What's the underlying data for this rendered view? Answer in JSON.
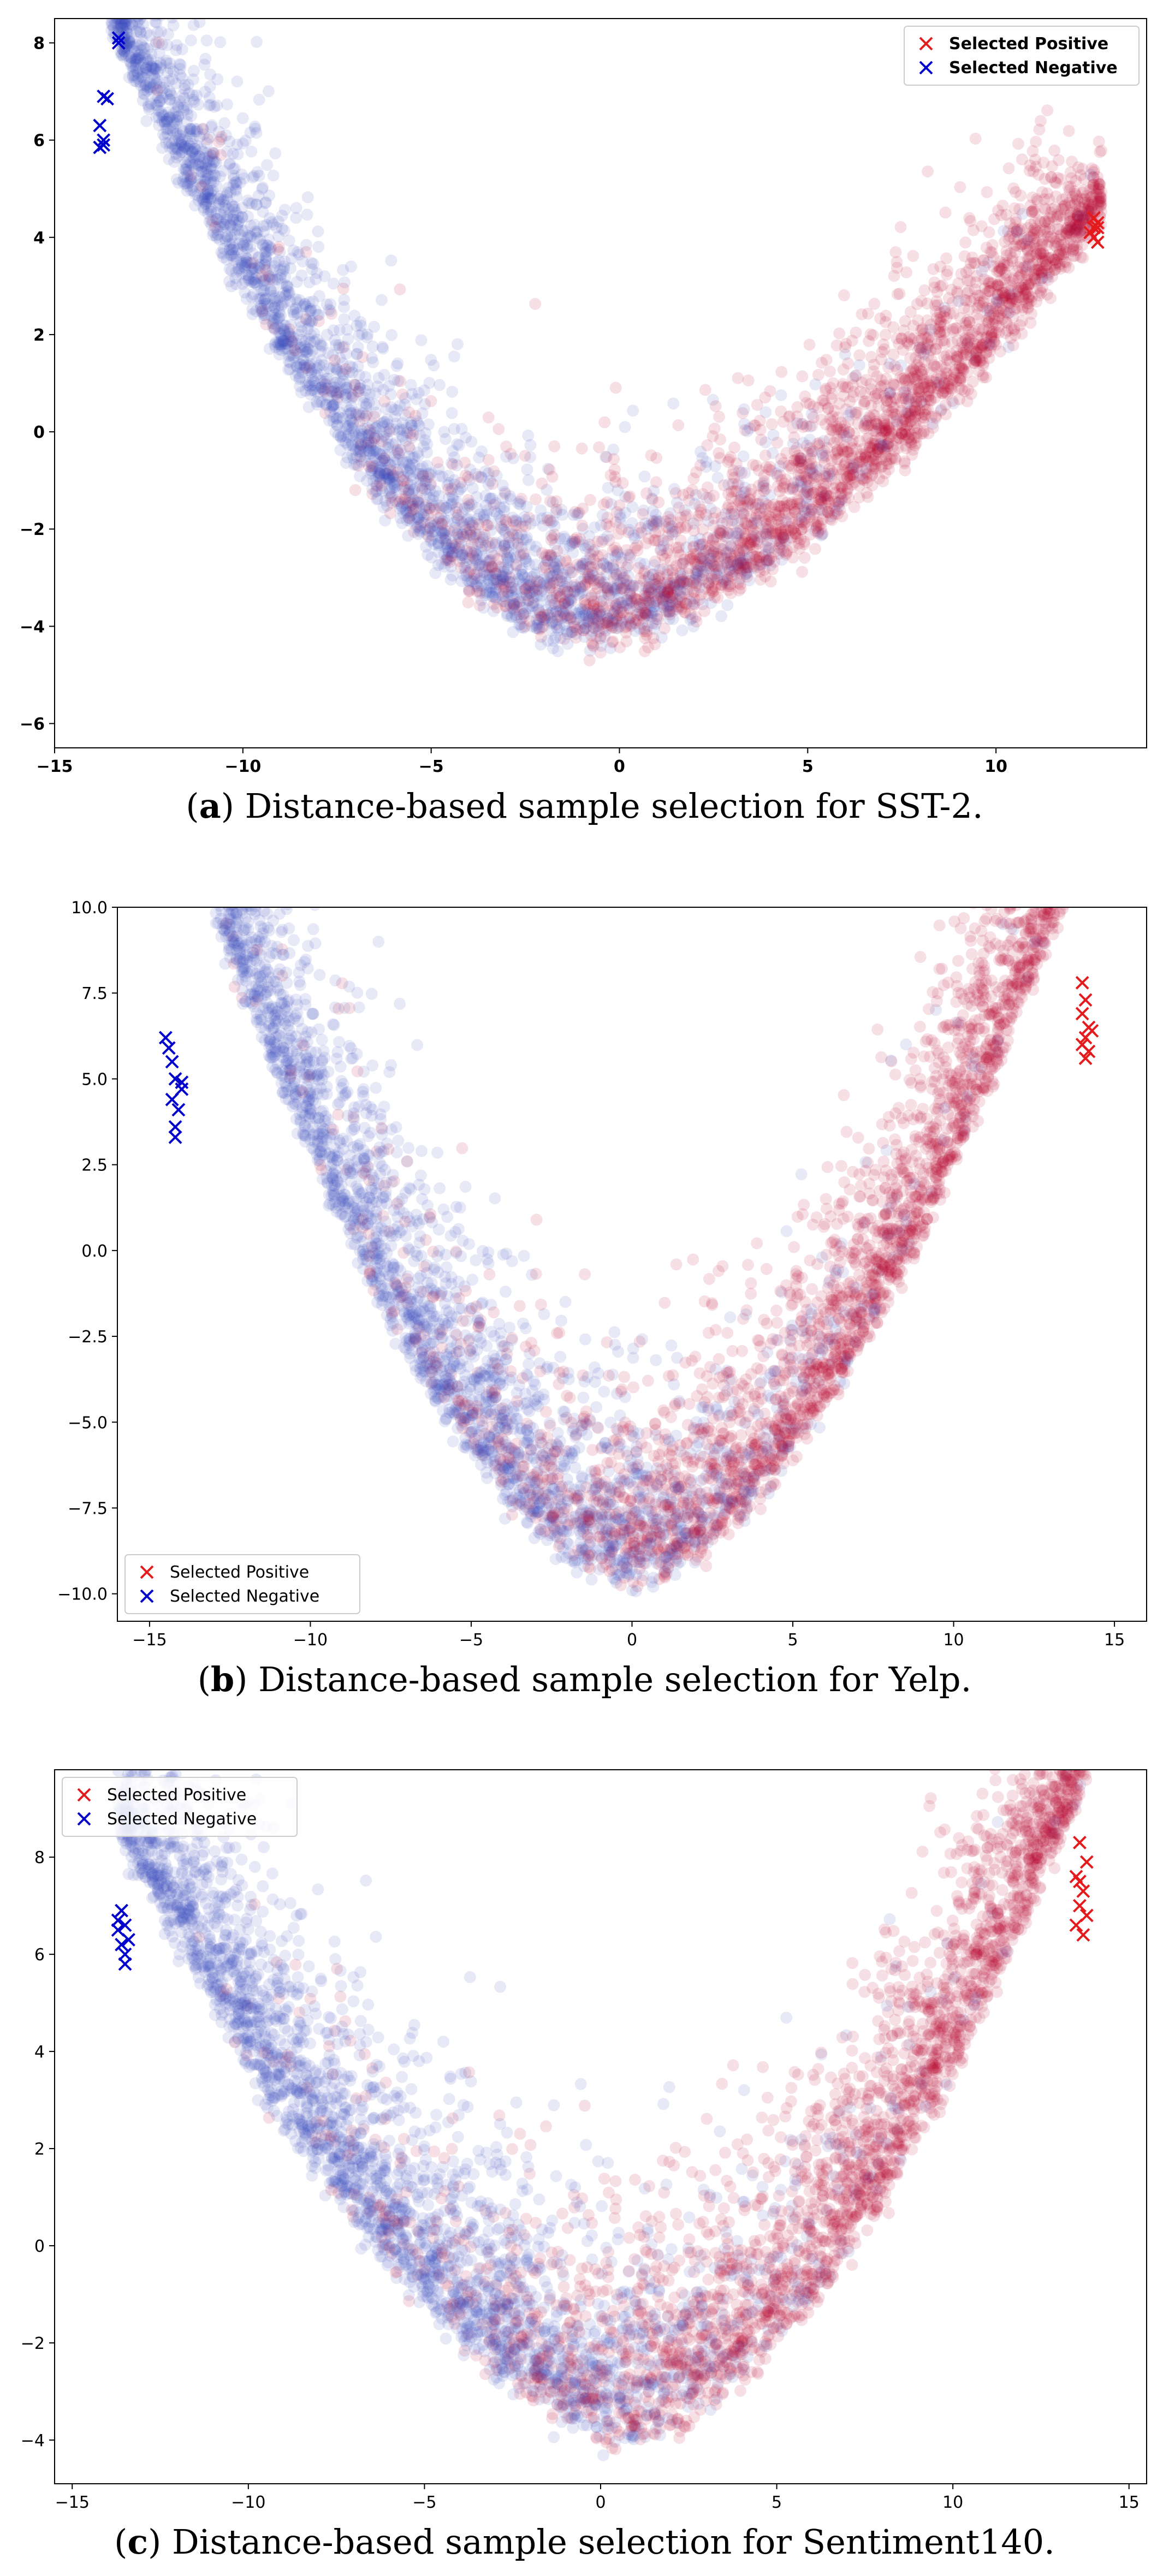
{
  "chart_data": [
    {
      "panel": "a",
      "type": "scatter",
      "title": "",
      "xlabel": "",
      "ylabel": "",
      "xlim": [
        -15,
        14
      ],
      "ylim": [
        -6.5,
        8.5
      ],
      "xticks": [
        -15,
        -10,
        -5,
        0,
        5,
        10
      ],
      "yticks": [
        -6,
        -4,
        -2,
        0,
        2,
        4,
        6,
        8
      ],
      "tick_bold": true,
      "grid": false,
      "legend": {
        "placement": "top-right",
        "bold": true,
        "entries": [
          "Selected Positive",
          "Selected Negative"
        ]
      },
      "colors": {
        "positive": "#b40426",
        "negative": "#3b4cc0",
        "selected_positive": "#e41a1c",
        "selected_negative": "#0000cc"
      },
      "cloud": {
        "shape": "u-arc",
        "x_range": [
          -13.5,
          12.8
        ],
        "min_at": [
          -1,
          -4.2
        ],
        "left_top": [
          -13.2,
          8.0
        ],
        "right_top": [
          12.6,
          4.4
        ],
        "spread": 1.6
      },
      "selected_positive": [
        [
          12.6,
          4.4
        ],
        [
          12.7,
          4.2
        ],
        [
          12.6,
          4.0
        ],
        [
          12.7,
          4.3
        ],
        [
          12.5,
          4.1
        ],
        [
          12.7,
          3.9
        ],
        [
          12.6,
          4.2
        ]
      ],
      "selected_negative": [
        [
          -13.3,
          8.1
        ],
        [
          -13.3,
          8.0
        ],
        [
          -13.7,
          6.9
        ],
        [
          -13.6,
          6.85
        ],
        [
          -13.8,
          6.3
        ],
        [
          -13.7,
          6.0
        ],
        [
          -13.8,
          5.85
        ],
        [
          -13.7,
          5.9
        ]
      ],
      "caption": {
        "label": "a",
        "text": "Distance-based sample selection for SST-2."
      }
    },
    {
      "panel": "b",
      "type": "scatter",
      "title": "",
      "xlabel": "",
      "ylabel": "",
      "xlim": [
        -16,
        16
      ],
      "ylim": [
        -10.8,
        10.0
      ],
      "xticks": [
        -15,
        -10,
        -5,
        0,
        5,
        10,
        15
      ],
      "yticks": [
        -10.0,
        -7.5,
        -5.0,
        -2.5,
        0.0,
        2.5,
        5.0,
        7.5,
        10.0
      ],
      "tick_bold": false,
      "grid": false,
      "legend": {
        "placement": "bottom-left",
        "bold": false,
        "entries": [
          "Selected Positive",
          "Selected Negative"
        ]
      },
      "colors": {
        "positive": "#b40426",
        "negative": "#3b4cc0",
        "selected_positive": "#e41a1c",
        "selected_negative": "#0000cc"
      },
      "cloud": {
        "shape": "u-arc",
        "x_range": [
          -14.8,
          14.2
        ],
        "min_at": [
          0,
          -9.6
        ],
        "left_top": [
          -12.8,
          9.4
        ],
        "right_top": [
          13.0,
          9.3
        ],
        "spread": 3.2
      },
      "selected_positive": [
        [
          14.0,
          7.8
        ],
        [
          14.1,
          7.3
        ],
        [
          14.0,
          6.9
        ],
        [
          14.2,
          6.5
        ],
        [
          14.1,
          6.2
        ],
        [
          14.0,
          6.0
        ],
        [
          14.2,
          5.8
        ],
        [
          14.1,
          5.6
        ],
        [
          14.3,
          6.4
        ]
      ],
      "selected_negative": [
        [
          -14.5,
          6.2
        ],
        [
          -14.4,
          5.9
        ],
        [
          -14.3,
          5.5
        ],
        [
          -14.2,
          5.0
        ],
        [
          -14.0,
          4.7
        ],
        [
          -14.3,
          4.4
        ],
        [
          -14.1,
          4.1
        ],
        [
          -14.2,
          3.6
        ],
        [
          -14.2,
          3.3
        ],
        [
          -14.0,
          4.9
        ]
      ],
      "caption": {
        "label": "b",
        "text": "Distance-based sample selection for Yelp."
      }
    },
    {
      "panel": "c",
      "type": "scatter",
      "title": "",
      "xlabel": "",
      "ylabel": "",
      "xlim": [
        -15.5,
        15.5
      ],
      "ylim": [
        -4.9,
        9.8
      ],
      "xticks": [
        -15,
        -10,
        -5,
        0,
        5,
        10,
        15
      ],
      "yticks": [
        -4,
        -2,
        0,
        2,
        4,
        6,
        8
      ],
      "tick_bold": false,
      "grid": false,
      "legend": {
        "placement": "top-left",
        "bold": false,
        "entries": [
          "Selected Positive",
          "Selected Negative"
        ]
      },
      "colors": {
        "positive": "#b40426",
        "negative": "#3b4cc0",
        "selected_positive": "#e41a1c",
        "selected_negative": "#0000cc"
      },
      "cloud": {
        "shape": "u-arc",
        "x_range": [
          -13.7,
          13.8
        ],
        "min_at": [
          1,
          -3.8
        ],
        "left_top": [
          -13.0,
          7.7
        ],
        "right_top": [
          13.2,
          8.8
        ],
        "spread": 2.4
      },
      "selected_positive": [
        [
          13.6,
          8.3
        ],
        [
          13.8,
          7.9
        ],
        [
          13.5,
          7.6
        ],
        [
          13.7,
          7.3
        ],
        [
          13.6,
          7.0
        ],
        [
          13.8,
          6.8
        ],
        [
          13.5,
          6.6
        ],
        [
          13.7,
          6.4
        ],
        [
          13.6,
          7.5
        ]
      ],
      "selected_negative": [
        [
          -13.6,
          6.9
        ],
        [
          -13.5,
          6.6
        ],
        [
          -13.7,
          6.5
        ],
        [
          -13.4,
          6.3
        ],
        [
          -13.6,
          6.2
        ],
        [
          -13.5,
          6.0
        ],
        [
          -13.7,
          6.7
        ],
        [
          -13.5,
          5.8
        ]
      ],
      "caption": {
        "label": "c",
        "text": "Distance-based sample selection for Sentiment140."
      }
    }
  ]
}
